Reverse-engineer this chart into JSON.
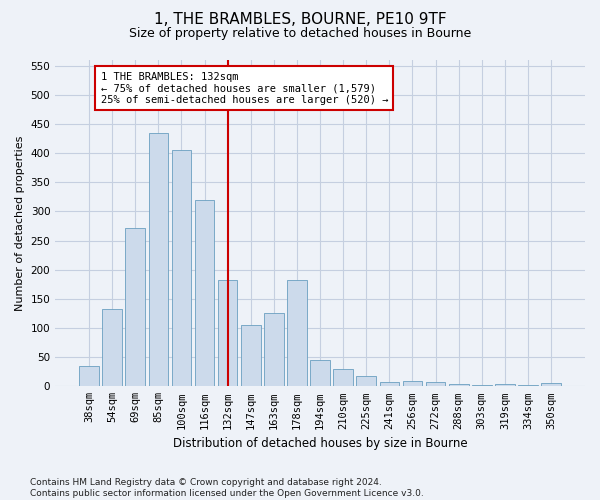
{
  "title_line1": "1, THE BRAMBLES, BOURNE, PE10 9TF",
  "title_line2": "Size of property relative to detached houses in Bourne",
  "xlabel": "Distribution of detached houses by size in Bourne",
  "ylabel": "Number of detached properties",
  "footnote": "Contains HM Land Registry data © Crown copyright and database right 2024.\nContains public sector information licensed under the Open Government Licence v3.0.",
  "categories": [
    "38sqm",
    "54sqm",
    "69sqm",
    "85sqm",
    "100sqm",
    "116sqm",
    "132sqm",
    "147sqm",
    "163sqm",
    "178sqm",
    "194sqm",
    "210sqm",
    "225sqm",
    "241sqm",
    "256sqm",
    "272sqm",
    "288sqm",
    "303sqm",
    "319sqm",
    "334sqm",
    "350sqm"
  ],
  "values": [
    35,
    133,
    272,
    435,
    405,
    320,
    183,
    105,
    125,
    183,
    46,
    30,
    17,
    8,
    9,
    8,
    4,
    3,
    4,
    3,
    5
  ],
  "bar_color": "#ccdaeb",
  "bar_edge_color": "#6a9fc0",
  "grid_color": "#c5cfe0",
  "background_color": "#eef2f8",
  "marker_index": 6,
  "marker_line_color": "#cc0000",
  "annotation_text": "1 THE BRAMBLES: 132sqm\n← 75% of detached houses are smaller (1,579)\n25% of semi-detached houses are larger (520) →",
  "annotation_box_color": "#ffffff",
  "annotation_box_edge": "#cc0000",
  "ylim": [
    0,
    560
  ],
  "yticks": [
    0,
    50,
    100,
    150,
    200,
    250,
    300,
    350,
    400,
    450,
    500,
    550
  ],
  "title_fontsize": 11,
  "subtitle_fontsize": 9,
  "ylabel_fontsize": 8,
  "xlabel_fontsize": 8.5,
  "tick_fontsize": 7.5,
  "footnote_fontsize": 6.5
}
